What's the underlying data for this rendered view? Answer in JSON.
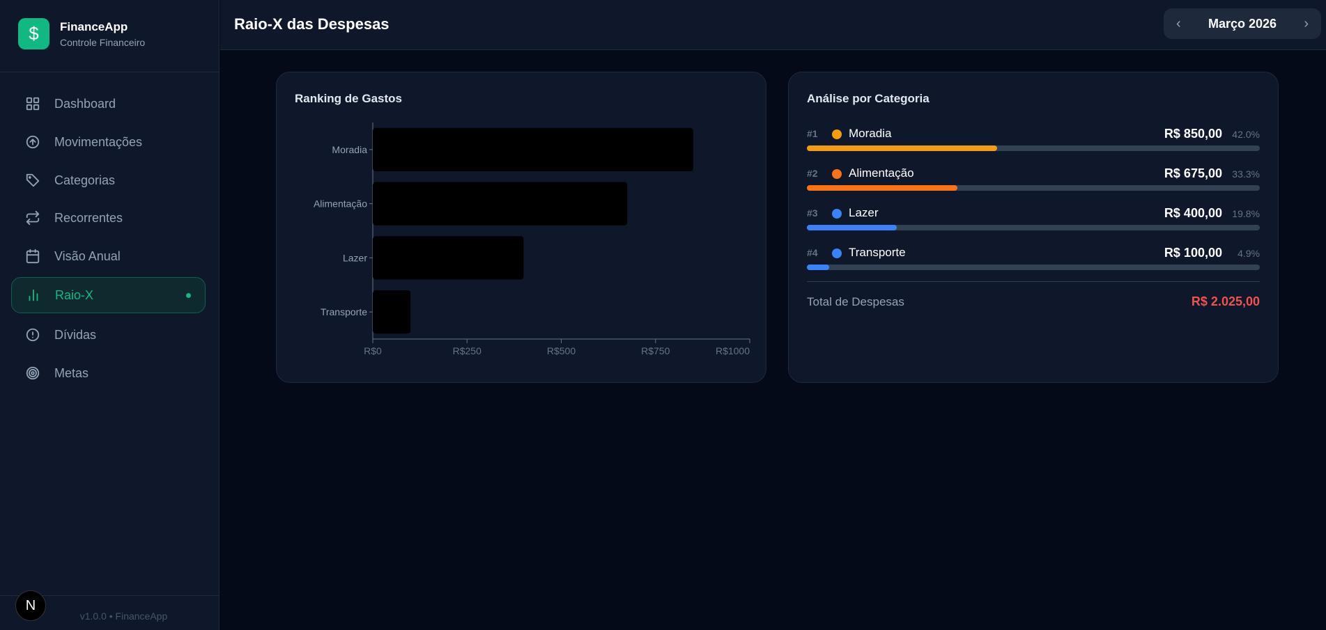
{
  "app": {
    "name": "FinanceApp",
    "subtitle": "Controle Financeiro",
    "logo_icon": "dollar-icon",
    "version": "v1.0.0 • FinanceApp",
    "bottom_badge": "N"
  },
  "nav": [
    {
      "label": "Dashboard",
      "icon": "grid-icon"
    },
    {
      "label": "Movimentações",
      "icon": "arrow-up-circle-icon"
    },
    {
      "label": "Categorias",
      "icon": "tag-icon"
    },
    {
      "label": "Recorrentes",
      "icon": "repeat-icon"
    },
    {
      "label": "Visão Anual",
      "icon": "calendar-icon"
    },
    {
      "label": "Raio-X",
      "icon": "bar-chart-icon",
      "active": true
    },
    {
      "label": "Dívidas",
      "icon": "alert-circle-icon"
    },
    {
      "label": "Metas",
      "icon": "target-icon"
    }
  ],
  "header": {
    "title": "Raio-X das Despesas",
    "month": "Março 2026",
    "prev": "‹",
    "next": "›"
  },
  "ranking": {
    "title": "Ranking de Gastos"
  },
  "chart_data": {
    "type": "bar",
    "orientation": "horizontal",
    "categories": [
      "Moradia",
      "Alimentação",
      "Lazer",
      "Transporte"
    ],
    "values": [
      850,
      675,
      400,
      100
    ],
    "xlim": [
      0,
      1000
    ],
    "xticks": [
      "R$0",
      "R$250",
      "R$500",
      "R$750",
      "R$1000"
    ],
    "xtick_values": [
      0,
      250,
      500,
      750,
      1000
    ],
    "bar_color": "#000000",
    "grid": false
  },
  "analysis": {
    "title": "Análise por Categoria",
    "rows": [
      {
        "rank": "#1",
        "name": "Moradia",
        "amount": "R$ 850,00",
        "pct": "42.0%",
        "share": 42.0,
        "color": "#f59e0b"
      },
      {
        "rank": "#2",
        "name": "Alimentação",
        "amount": "R$ 675,00",
        "pct": "33.3%",
        "share": 33.3,
        "color": "#f97316"
      },
      {
        "rank": "#3",
        "name": "Lazer",
        "amount": "R$ 400,00",
        "pct": "19.8%",
        "share": 19.8,
        "color": "#3b82f6"
      },
      {
        "rank": "#4",
        "name": "Transporte",
        "amount": "R$ 100,00",
        "pct": "4.9%",
        "share": 4.9,
        "color": "#3b82f6"
      }
    ],
    "total_label": "Total de Despesas",
    "total_value": "R$ 2.025,00",
    "total_color": "#ef5350"
  }
}
